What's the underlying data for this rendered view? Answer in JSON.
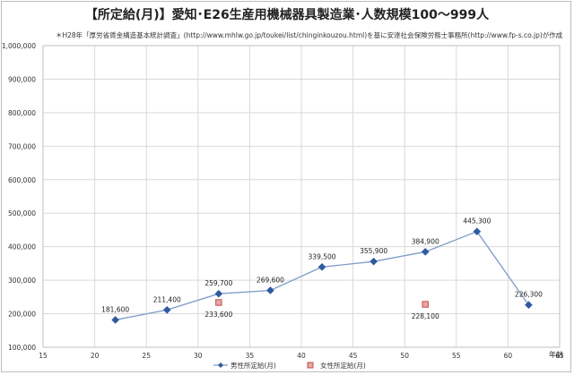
{
  "chart_data": {
    "type": "line",
    "title": "【所定給(月)】愛知･E26生産用機械器具製造業･人数規模100～999人",
    "source_note": "＊H28年「厚労省賃金構造基本統計調査」(http://www.mhlw.go.jp/toukei/list/chinginkouzou.html)を基に安達社会保険労務士事務所(http://www.fp-s.co.jp)が作成",
    "xlabel": "年齢",
    "ylabel": "",
    "xlim": [
      15,
      65
    ],
    "ylim": [
      100000,
      1000000
    ],
    "x_ticks": [
      15,
      20,
      25,
      30,
      35,
      40,
      45,
      50,
      55,
      60,
      65
    ],
    "y_ticks": [
      100000,
      200000,
      300000,
      400000,
      500000,
      600000,
      700000,
      800000,
      900000,
      1000000
    ],
    "y_tick_labels": [
      "100,000",
      "200,000",
      "300,000",
      "400,000",
      "500,000",
      "600,000",
      "700,000",
      "800,000",
      "900,000",
      "1,000,000"
    ],
    "grid": true,
    "legend_position": "bottom",
    "series": [
      {
        "name": "男性所定給(月)",
        "color": "#2e5aa0",
        "marker": "diamond",
        "line": true,
        "x": [
          22,
          27,
          32,
          37,
          42,
          47,
          52,
          57,
          62
        ],
        "y": [
          181600,
          211400,
          259700,
          269600,
          339500,
          355900,
          384900,
          445300,
          226300
        ],
        "labels": [
          "181,600",
          "211,400",
          "259,700",
          "269,600",
          "339,500",
          "355,900",
          "384,900",
          "445,300",
          "226,300"
        ]
      },
      {
        "name": "女性所定給(月)",
        "color": "#c0504d",
        "marker": "square",
        "line": false,
        "x": [
          32,
          52
        ],
        "y": [
          233600,
          228100
        ],
        "labels": [
          "233,600",
          "228,100"
        ]
      }
    ]
  }
}
